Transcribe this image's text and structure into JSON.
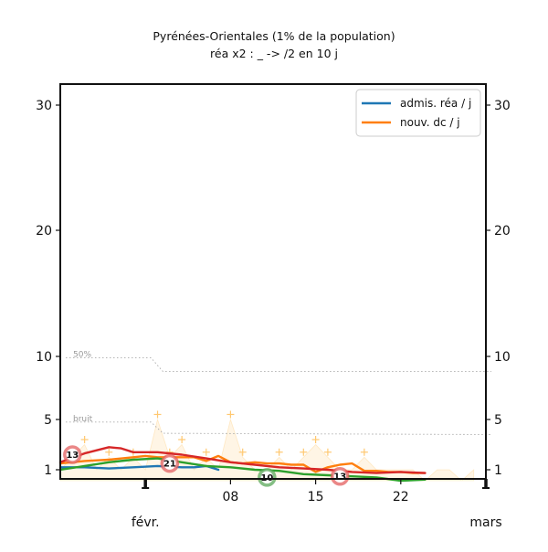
{
  "chart_data": {
    "type": "line",
    "title": "Pyrénées-Orientales (1% de la population)",
    "subtitle": "réa x2 : _ -> /2 en 10 j",
    "y_ticks": [
      1,
      5,
      10,
      20,
      30
    ],
    "ylim": [
      0,
      32
    ],
    "x_tick_labels": [
      {
        "day": 8,
        "label": "08"
      },
      {
        "day": 15,
        "label": "15"
      },
      {
        "day": 22,
        "label": "22"
      }
    ],
    "month_labels": [
      {
        "day": 1,
        "label": "févr."
      },
      {
        "day": 29,
        "label": "mars"
      }
    ],
    "xlim": [
      -6,
      29
    ],
    "reference_lines": [
      {
        "label": "50%",
        "values": [
          [
            -6,
            9.9
          ],
          [
            1,
            9.9
          ],
          [
            2,
            8.8
          ],
          [
            29,
            8.8
          ]
        ]
      },
      {
        "label": "bruit",
        "values": [
          [
            -6,
            4.8
          ],
          [
            1,
            4.8
          ],
          [
            2,
            3.9
          ],
          [
            29,
            3.8
          ]
        ]
      }
    ],
    "series": [
      {
        "name": "admis. réa / j",
        "color": "#1f77b4",
        "x": [
          -6,
          -4,
          -2,
          0,
          2,
          4,
          5,
          6,
          7
        ],
        "y": [
          1.2,
          1.2,
          1.1,
          1.2,
          1.3,
          1.2,
          1.2,
          1.3,
          1.0
        ]
      },
      {
        "name": "nouv. dc / j",
        "color": "#ff7f0e",
        "x": [
          -6,
          -4,
          -2,
          0,
          1,
          2,
          4,
          5,
          6,
          7,
          8,
          9,
          10,
          11,
          12,
          13,
          14,
          15,
          16,
          17,
          18,
          19,
          20,
          21,
          22,
          23,
          24
        ],
        "y": [
          1.5,
          1.7,
          1.8,
          2.0,
          2.1,
          2.0,
          2.0,
          2.0,
          1.7,
          2.1,
          1.6,
          1.5,
          1.6,
          1.5,
          1.5,
          1.4,
          1.4,
          0.8,
          1.2,
          1.4,
          1.5,
          0.9,
          0.9,
          0.8,
          0.8,
          0.7,
          0.7
        ]
      },
      {
        "color": "#2ca02c",
        "x": [
          -6,
          -4,
          -2,
          0,
          2,
          4,
          6,
          8,
          10,
          12,
          14,
          16,
          18,
          20,
          22,
          24
        ],
        "y": [
          1.0,
          1.3,
          1.6,
          1.8,
          1.9,
          1.6,
          1.3,
          1.2,
          1.0,
          0.9,
          0.6,
          0.5,
          0.4,
          0.3,
          0.0,
          0.1
        ]
      },
      {
        "color": "#d62728",
        "x": [
          -6,
          -4,
          -2,
          -1,
          0,
          2,
          4,
          6,
          8,
          10,
          12,
          14,
          16,
          18,
          20,
          22,
          24
        ],
        "y": [
          1.6,
          2.3,
          2.8,
          2.7,
          2.4,
          2.4,
          2.2,
          1.9,
          1.6,
          1.4,
          1.2,
          1.1,
          1.0,
          0.8,
          0.7,
          0.8,
          0.7
        ]
      }
    ],
    "raw_points": {
      "color": "#ffc870",
      "x": [
        -6,
        -5,
        -4,
        -3,
        -2,
        -1,
        0,
        1,
        2,
        3,
        4,
        5,
        6,
        7,
        8,
        9,
        10,
        11,
        12,
        13,
        14,
        15,
        16,
        17,
        18,
        19,
        20,
        21,
        22,
        23,
        24,
        25,
        26,
        27,
        28
      ],
      "y": [
        1,
        2,
        3,
        1,
        2,
        1,
        2,
        1,
        5,
        2,
        3,
        1,
        2,
        1,
        5,
        2,
        1,
        1,
        2,
        1,
        2,
        3,
        2,
        1,
        1,
        2,
        1,
        1,
        1,
        1,
        0,
        1,
        1,
        0,
        1
      ]
    },
    "badges": [
      {
        "x": -5,
        "y": 2.2,
        "value": "13",
        "color": "#e35f5f"
      },
      {
        "x": 3,
        "y": 1.5,
        "value": "21",
        "color": "#e35f5f"
      },
      {
        "x": 11,
        "y": 0.3,
        "value": "10",
        "color": "#5ba85b"
      },
      {
        "x": 17,
        "y": 0.4,
        "value": "13",
        "color": "#e35f5f"
      }
    ],
    "legend_position": "top-right",
    "grid": false
  }
}
